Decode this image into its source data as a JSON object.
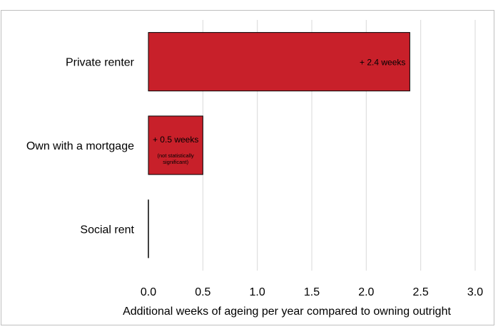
{
  "chart_data": {
    "type": "bar",
    "orientation": "horizontal",
    "categories": [
      "Private renter",
      "Own with a mortgage",
      "Social rent"
    ],
    "values": [
      2.4,
      0.5,
      0.0
    ],
    "data_labels": [
      "+ 2.4 weeks",
      "+ 0.5 weeks",
      ""
    ],
    "data_notes": [
      "",
      "(not statistically significant)",
      ""
    ],
    "xlabel": "Additional weeks of ageing per year compared to owning outright",
    "ylabel": "",
    "xlim": [
      0,
      3.0
    ],
    "xticks": [
      "0.0",
      "0.5",
      "1.0",
      "1.5",
      "2.0",
      "2.5",
      "3.0"
    ],
    "grid": "vertical",
    "bar_color": "#c8202a",
    "bar_edge_color": "#000000"
  }
}
